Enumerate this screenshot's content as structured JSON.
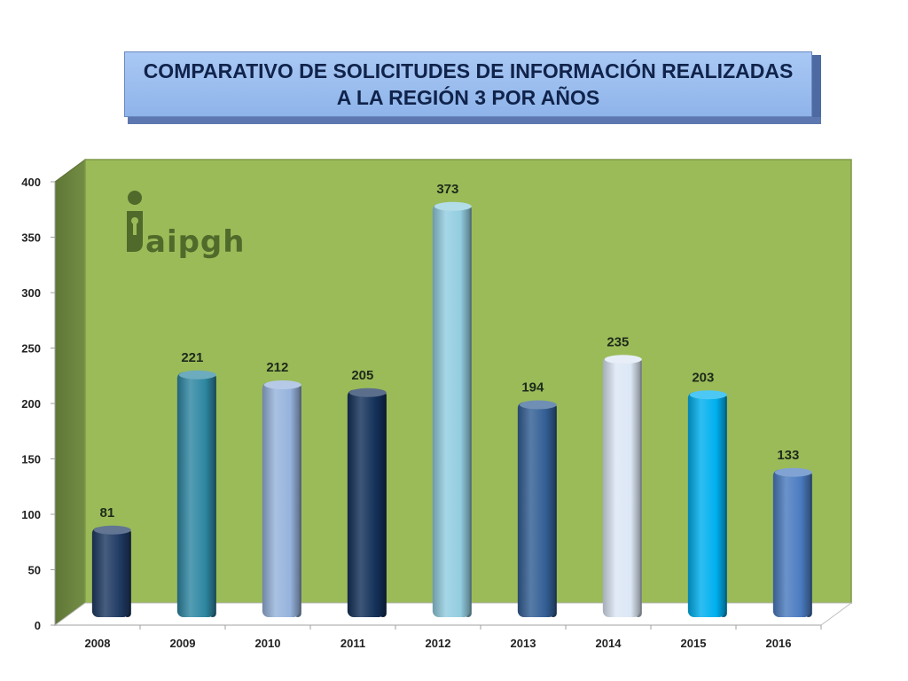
{
  "title": {
    "line1": "COMPARATIVO DE SOLICITUDES  DE INFORMACIÓN REALIZADAS",
    "line2": "A LA REGIÓN 3 POR AÑOS"
  },
  "logo": {
    "text": "aipgh",
    "icon": "iaipgh-logo-icon"
  },
  "colors": {
    "plot_background": "#9bbb59",
    "side_wall": "#6c843f",
    "floor": "#ffffff"
  },
  "chart_data": {
    "type": "bar",
    "categories": [
      "2008",
      "2009",
      "2010",
      "2011",
      "2012",
      "2013",
      "2014",
      "2015",
      "2016"
    ],
    "values": [
      81,
      221,
      212,
      205,
      373,
      194,
      235,
      203,
      133
    ],
    "data_labels": [
      "81",
      "221",
      "212",
      "205",
      "373",
      "194",
      "235",
      "203",
      "133"
    ],
    "bar_colors": [
      "#1f3a63",
      "#2e87a2",
      "#96b3dc",
      "#14315a",
      "#92cde0",
      "#335f95",
      "#dce7f5",
      "#00b0ef",
      "#4a7bc0"
    ],
    "ylim": [
      0,
      400
    ],
    "yticks": [
      "0",
      "50",
      "100",
      "150",
      "200",
      "250",
      "300",
      "350",
      "400"
    ],
    "grid": false,
    "legend": "none"
  }
}
